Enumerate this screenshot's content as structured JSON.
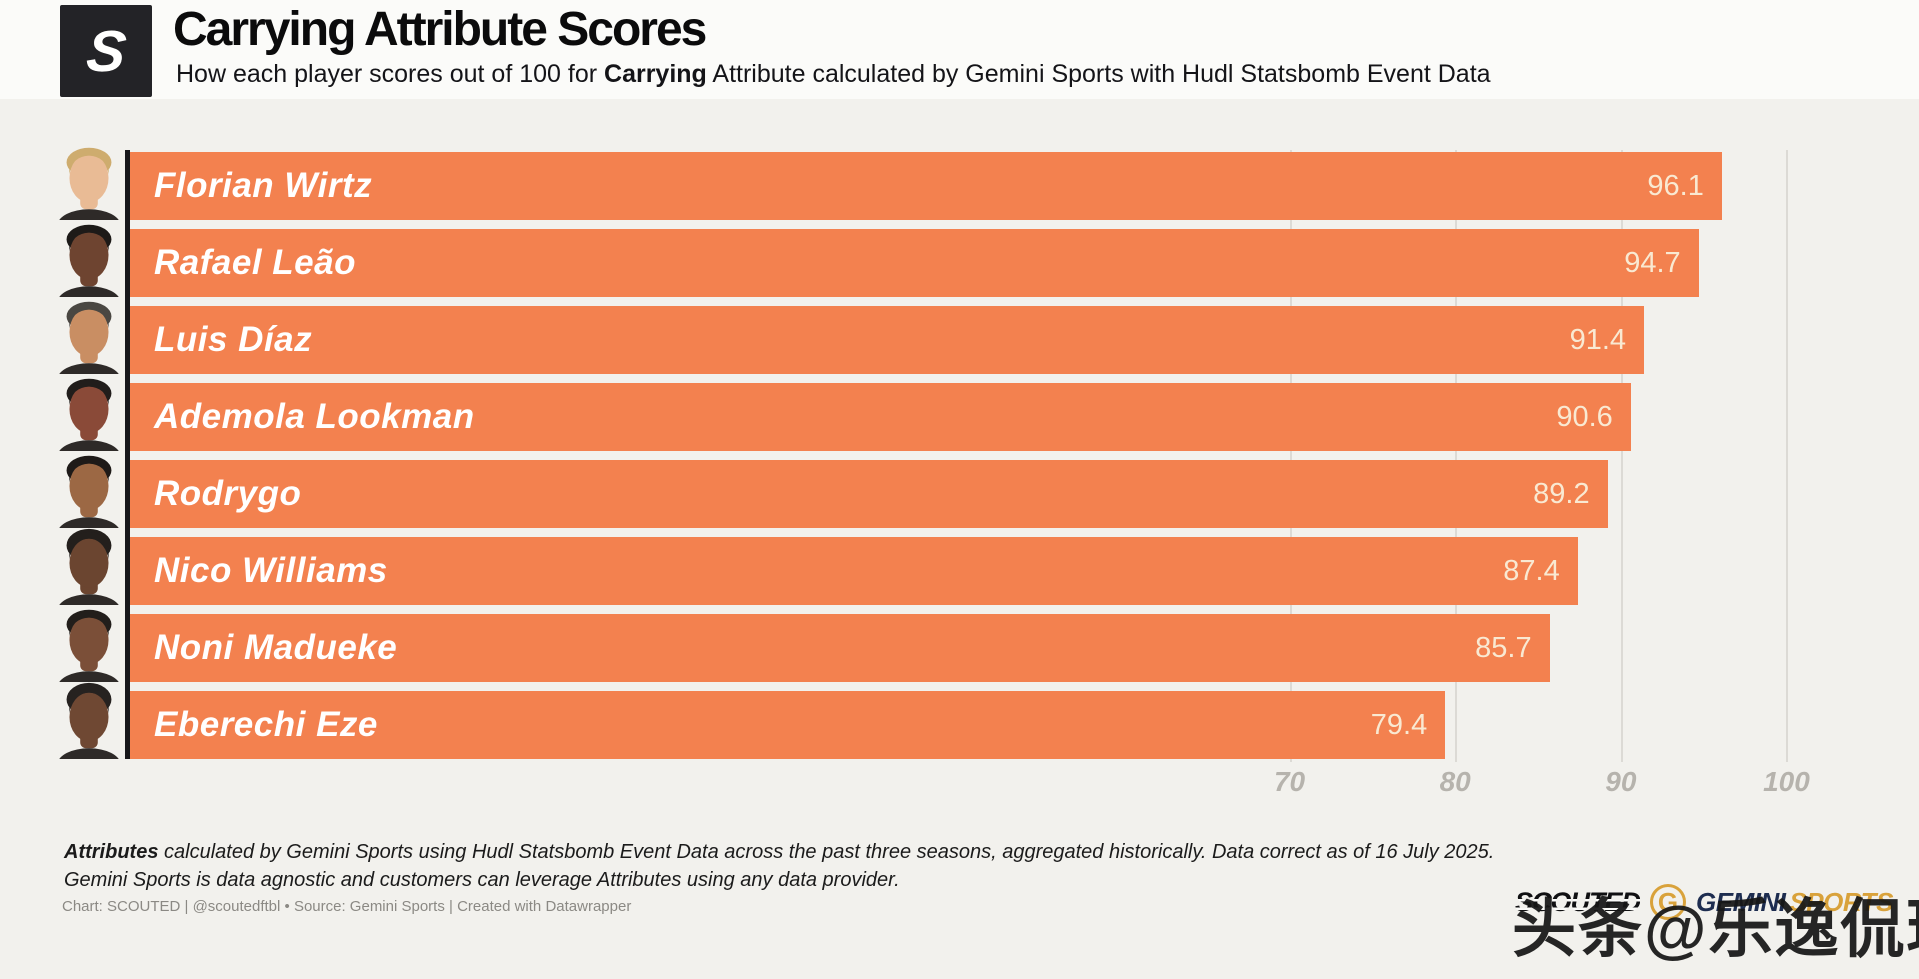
{
  "header": {
    "logo_glyph": "S",
    "title": "Carrying Attribute Scores",
    "subtitle_prefix": "How each player scores out of 100 for ",
    "subtitle_bold": "Carrying",
    "subtitle_suffix": " Attribute calculated by Gemini Sports with Hudl Statsbomb Event Data"
  },
  "chart_data": {
    "type": "bar",
    "orientation": "horizontal",
    "title": "Carrying Attribute Scores",
    "categories": [
      "Florian Wirtz",
      "Rafael Leão",
      "Luis Díaz",
      "Ademola Lookman",
      "Rodrygo",
      "Nico Williams",
      "Noni Madueke",
      "Eberechi Eze"
    ],
    "values": [
      96.1,
      94.7,
      91.4,
      90.6,
      89.2,
      87.4,
      85.7,
      79.4
    ],
    "xlim": [
      0,
      108
    ],
    "x_ticks": [
      70,
      80,
      90,
      100
    ],
    "x_tick_labels": [
      "70",
      "80",
      "90",
      "100"
    ],
    "grid": true,
    "bar_color": "#F3814F",
    "value_label_color": "#F9E9D2",
    "name_label_color": "#FFFFFF",
    "axis_line_color": "#17171A"
  },
  "players": [
    {
      "name": "Florian Wirtz",
      "score": "96.1",
      "avatar_skin": "#E9BB95",
      "avatar_hair": "#CEAC6E"
    },
    {
      "name": "Rafael Leão",
      "score": "94.7",
      "avatar_skin": "#6E4430",
      "avatar_hair": "#1D1A18"
    },
    {
      "name": "Luis Díaz",
      "score": "91.4",
      "avatar_skin": "#C98E63",
      "avatar_hair": "#4A4742"
    },
    {
      "name": "Ademola Lookman",
      "score": "90.6",
      "avatar_skin": "#8A4A38",
      "avatar_hair": "#211D1B"
    },
    {
      "name": "Rodrygo",
      "score": "89.2",
      "avatar_skin": "#9C6844",
      "avatar_hair": "#1E1A18"
    },
    {
      "name": "Nico Williams",
      "score": "87.4",
      "avatar_skin": "#6B4530",
      "avatar_hair": "#231F1C"
    },
    {
      "name": "Noni Madueke",
      "score": "85.7",
      "avatar_skin": "#7B4F38",
      "avatar_hair": "#221E1B"
    },
    {
      "name": "Eberechi Eze",
      "score": "79.4",
      "avatar_skin": "#6F4833",
      "avatar_hair": "#262220"
    }
  ],
  "footer": {
    "footnote_bold": "Attributes",
    "footnote_line1_rest": " calculated by Gemini Sports using Hudl Statsbomb Event Data across the past three seasons, aggregated historically. Data correct as of 16 July 2025.",
    "footnote_line2": "Gemini Sports is data agnostic and customers can leverage Attributes using any data provider.",
    "credit": "Chart: SCOUTED | @scoutedftbl • Source: Gemini Sports | Created with Datawrapper"
  },
  "branding": {
    "scouted": "SCOUTED",
    "gemini_g": "G",
    "gemini_name": "GEMINI",
    "gemini_sports": "SPORTS",
    "watermark": "头条@乐逸侃球"
  }
}
